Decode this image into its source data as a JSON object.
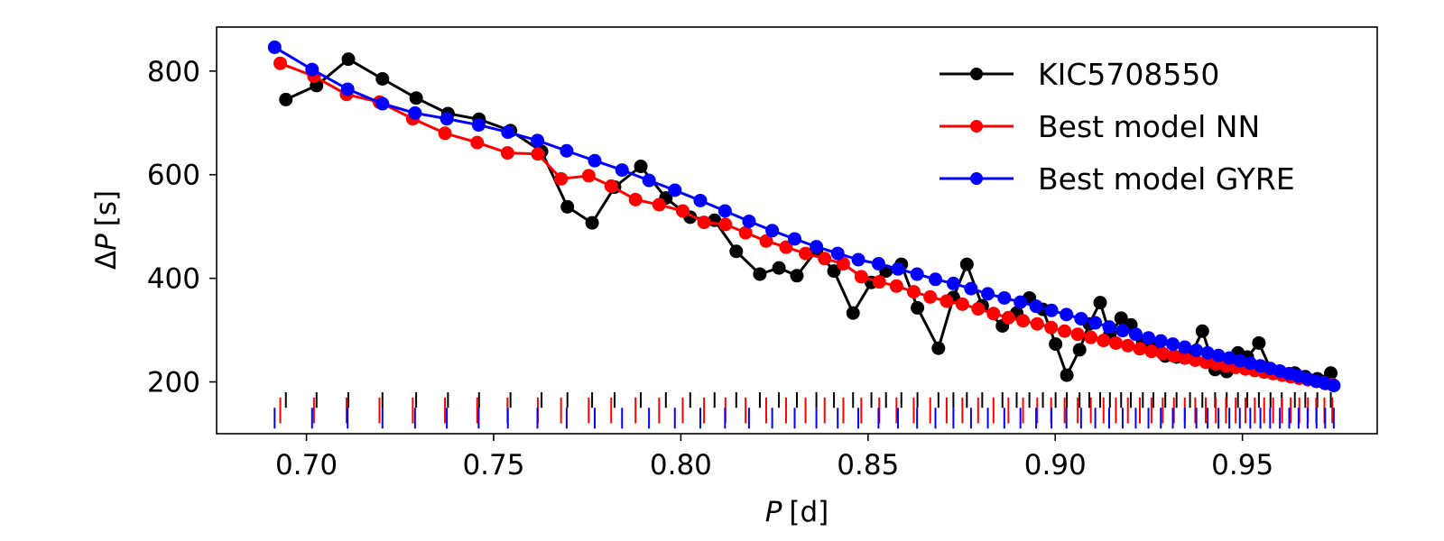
{
  "chart_data": {
    "type": "line",
    "title": "",
    "xlabel_var": "P",
    "xlabel_unit": "[d]",
    "ylabel_prefix": "Δ",
    "ylabel_var": "P",
    "ylabel_unit": "[s]",
    "xlim": [
      0.676,
      0.986
    ],
    "ylim": [
      100,
      885
    ],
    "xticks": [
      0.7,
      0.75,
      0.8,
      0.85,
      0.9,
      0.95
    ],
    "xtick_labels": [
      "0.70",
      "0.75",
      "0.80",
      "0.85",
      "0.90",
      "0.95"
    ],
    "yticks": [
      200,
      400,
      600,
      800
    ],
    "ytick_labels": [
      "200",
      "400",
      "600",
      "800"
    ],
    "legend_position": "top-right",
    "series": [
      {
        "name": "KIC5708550",
        "color": "#000000",
        "tick_y": [
          150,
          180
        ],
        "x": [
          0.6945,
          0.7027,
          0.7112,
          0.7203,
          0.7293,
          0.7378,
          0.7461,
          0.7545,
          0.7628,
          0.7697,
          0.7763,
          0.7823,
          0.7893,
          0.796,
          0.8025,
          0.809,
          0.8148,
          0.8211,
          0.8262,
          0.831,
          0.8362,
          0.8409,
          0.846,
          0.8509,
          0.8548,
          0.8589,
          0.8632,
          0.8688,
          0.8728,
          0.8764,
          0.8805,
          0.8859,
          0.8897,
          0.8931,
          0.8967,
          0.9001,
          0.9031,
          0.9065,
          0.9091,
          0.912,
          0.9146,
          0.9176,
          0.9202,
          0.9234,
          0.9262,
          0.9294,
          0.9324,
          0.936,
          0.9393,
          0.9427,
          0.9458,
          0.9488,
          0.9513,
          0.9544,
          0.9575,
          0.9605,
          0.964,
          0.9668,
          0.97,
          0.9736
        ],
        "y": [
          745,
          772,
          823,
          785,
          748,
          718,
          707,
          685,
          645,
          538,
          507,
          576,
          616,
          555,
          518,
          512,
          452,
          408,
          420,
          405,
          454,
          414,
          333,
          392,
          414,
          427,
          343,
          265,
          363,
          427,
          347,
          308,
          333,
          362,
          340,
          273,
          213,
          262,
          312,
          353,
          292,
          323,
          310,
          277,
          268,
          250,
          248,
          248,
          298,
          224,
          220,
          256,
          248,
          275,
          225,
          215,
          217,
          210,
          206,
          217
        ]
      },
      {
        "name": "Best model NN",
        "color": "#ff0000",
        "tick_y": [
          120,
          170
        ],
        "x": [
          0.693,
          0.702,
          0.7107,
          0.7195,
          0.7284,
          0.737,
          0.7456,
          0.7537,
          0.7618,
          0.768,
          0.7754,
          0.7814,
          0.7879,
          0.7942,
          0.8005,
          0.8062,
          0.8119,
          0.8173,
          0.8228,
          0.8281,
          0.8333,
          0.8384,
          0.8434,
          0.8482,
          0.853,
          0.8576,
          0.8622,
          0.8666,
          0.871,
          0.8752,
          0.8794,
          0.8835,
          0.8875,
          0.8914,
          0.8952,
          0.8989,
          0.9025,
          0.906,
          0.9095,
          0.9129,
          0.9162,
          0.9194,
          0.9226,
          0.9257,
          0.9287,
          0.9317,
          0.9346,
          0.9374,
          0.9402,
          0.9429,
          0.9456,
          0.9482,
          0.9508,
          0.9533,
          0.9558,
          0.9582,
          0.9606,
          0.9629,
          0.9652,
          0.9675,
          0.9697,
          0.9719,
          0.974
        ],
        "y": [
          815,
          790,
          755,
          740,
          708,
          680,
          662,
          642,
          640,
          592,
          598,
          578,
          552,
          542,
          530,
          508,
          504,
          488,
          472,
          460,
          448,
          438,
          428,
          403,
          393,
          385,
          374,
          364,
          356,
          350,
          341,
          332,
          324,
          318,
          312,
          305,
          298,
          292,
          286,
          280,
          275,
          270,
          264,
          259,
          255,
          250,
          246,
          242,
          238,
          235,
          231,
          228,
          225,
          222,
          219,
          216,
          213,
          210,
          207,
          204,
          201,
          198,
          195
        ]
      },
      {
        "name": "Best model GYRE",
        "color": "#0000ff",
        "tick_y": [
          110,
          150
        ],
        "x": [
          0.6915,
          0.7015,
          0.711,
          0.7203,
          0.729,
          0.7375,
          0.746,
          0.7538,
          0.7617,
          0.7695,
          0.777,
          0.7843,
          0.7915,
          0.7984,
          0.8052,
          0.8118,
          0.8182,
          0.8244,
          0.8304,
          0.8362,
          0.8419,
          0.8474,
          0.8528,
          0.858,
          0.8631,
          0.868,
          0.8728,
          0.8775,
          0.882,
          0.8864,
          0.8907,
          0.8949,
          0.899,
          0.903,
          0.9069,
          0.9107,
          0.9144,
          0.918,
          0.9215,
          0.9249,
          0.9282,
          0.9314,
          0.9346,
          0.9377,
          0.9407,
          0.9436,
          0.9465,
          0.9493,
          0.9521,
          0.9548,
          0.9574,
          0.96,
          0.9625,
          0.965,
          0.9674,
          0.9698,
          0.9721,
          0.9744
        ],
        "y": [
          846,
          803,
          765,
          737,
          719,
          708,
          696,
          682,
          666,
          646,
          627,
          609,
          589,
          570,
          550,
          530,
          510,
          492,
          476,
          461,
          448,
          436,
          428,
          418,
          408,
          398,
          390,
          380,
          370,
          362,
          354,
          346,
          338,
          330,
          322,
          314,
          306,
          299,
          292,
          285,
          279,
          273,
          267,
          261,
          256,
          251,
          246,
          241,
          236,
          231,
          226,
          221,
          216,
          211,
          206,
          201,
          197,
          193
        ]
      }
    ]
  }
}
